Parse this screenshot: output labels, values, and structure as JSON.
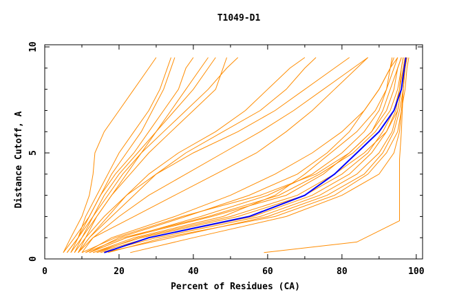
{
  "chart_data": {
    "type": "line",
    "title": "T1049-D1",
    "xlabel": "Percent of Residues (CA)",
    "ylabel": "Distance Cutoff, A",
    "xlim": [
      0,
      101.7
    ],
    "ylim": [
      0,
      10.1
    ],
    "xticks": [
      "0",
      "20",
      "40",
      "60",
      "80",
      "100"
    ],
    "yticks": [
      "0",
      "5",
      "10"
    ],
    "grid": false,
    "legend": "none",
    "colors": {
      "models": "#ff8c00",
      "highlight": "#0000ff"
    },
    "y_levels": [
      0.3,
      1,
      2,
      3,
      4,
      5,
      6,
      7,
      8,
      9,
      9.5
    ],
    "highlight_series": {
      "x": [
        16,
        28,
        55,
        70,
        78,
        84,
        90,
        94,
        96,
        96.8,
        97.2
      ]
    },
    "series": [
      {
        "x": [
          12,
          22,
          45,
          65,
          75,
          82,
          88,
          92,
          94,
          95,
          96
        ]
      },
      {
        "x": [
          14,
          25,
          50,
          68,
          78,
          86,
          92,
          95,
          96,
          97,
          97.5
        ]
      },
      {
        "x": [
          17,
          32,
          62,
          78,
          87,
          92,
          95,
          96,
          97,
          97.5,
          98
        ]
      },
      {
        "x": [
          23,
          40,
          65,
          80,
          90,
          94,
          95.5,
          96,
          96.5,
          97,
          97.5
        ]
      },
      {
        "x": [
          12,
          20,
          38,
          55,
          68,
          76,
          82,
          86,
          90,
          93,
          94
        ]
      },
      {
        "x": [
          11,
          18,
          35,
          50,
          62,
          72,
          80,
          86,
          90,
          93,
          95
        ]
      },
      {
        "x": [
          13,
          24,
          48,
          62,
          70,
          77,
          84,
          89,
          92,
          94,
          95
        ]
      },
      {
        "x": [
          15,
          30,
          58,
          74,
          84,
          90,
          93.5,
          95,
          96,
          96.5,
          97
        ]
      },
      {
        "x": [
          12,
          22,
          42,
          60,
          72,
          80,
          86,
          90,
          92,
          93,
          93.5
        ]
      },
      {
        "x": [
          10,
          19,
          37,
          58,
          73,
          82,
          88,
          91,
          93,
          95,
          96
        ]
      },
      {
        "x": [
          13,
          26,
          52,
          70,
          80,
          87,
          91,
          94,
          95.5,
          96.5,
          97
        ]
      },
      {
        "x": [
          11,
          21,
          44,
          63,
          74,
          83,
          89,
          93,
          95,
          96,
          96.5
        ]
      },
      {
        "x": [
          14,
          28,
          56,
          72,
          82,
          88,
          92,
          94.5,
          95.5,
          96,
          96.5
        ]
      },
      {
        "x": [
          16,
          34,
          60,
          76,
          86,
          91,
          94,
          95.5,
          96.5,
          97,
          97.5
        ]
      },
      {
        "x": [
          10,
          13,
          20,
          28,
          38,
          48,
          58,
          67,
          75,
          83,
          87
        ]
      },
      {
        "x": [
          9,
          13,
          24,
          35,
          46,
          57,
          65,
          72,
          78,
          84,
          87
        ]
      },
      {
        "x": [
          9,
          12,
          18,
          24,
          30,
          38,
          48,
          58,
          65,
          70,
          73
        ]
      },
      {
        "x": [
          9,
          12,
          17,
          22,
          28,
          36,
          46,
          54,
          60,
          66,
          70
        ]
      },
      {
        "x": [
          8,
          11,
          16,
          22,
          30,
          40,
          52,
          62,
          70,
          78,
          82
        ]
      },
      {
        "x": [
          5,
          7,
          10,
          12,
          13,
          13.5,
          16,
          20,
          24,
          28,
          30
        ]
      },
      {
        "x": [
          6,
          9,
          12,
          15,
          18,
          22,
          26,
          29,
          32,
          34,
          35
        ]
      },
      {
        "x": [
          7,
          10,
          14,
          18,
          22,
          26,
          30,
          34,
          38,
          42,
          44
        ]
      },
      {
        "x": [
          8,
          10,
          13,
          16,
          20,
          25,
          30,
          35,
          40,
          44,
          46
        ]
      },
      {
        "x": [
          6,
          9,
          11,
          14,
          17,
          20,
          24,
          28,
          31,
          33,
          34
        ]
      },
      {
        "x": [
          7,
          9,
          13,
          17,
          21,
          26,
          32,
          38,
          44,
          49,
          52
        ]
      },
      {
        "x": [
          5,
          8,
          12,
          15,
          19,
          24,
          28,
          32,
          36,
          38,
          40
        ]
      },
      {
        "x": [
          9,
          11,
          14,
          18,
          23,
          28,
          34,
          40,
          46,
          48,
          49
        ]
      }
    ],
    "outlier_series": {
      "x": [
        59,
        84,
        95.5,
        95.5,
        95.5,
        96,
        96.5,
        97
      ],
      "y": [
        0.3,
        0.8,
        1.8,
        3,
        4.7,
        6,
        8,
        9.5
      ]
    }
  }
}
